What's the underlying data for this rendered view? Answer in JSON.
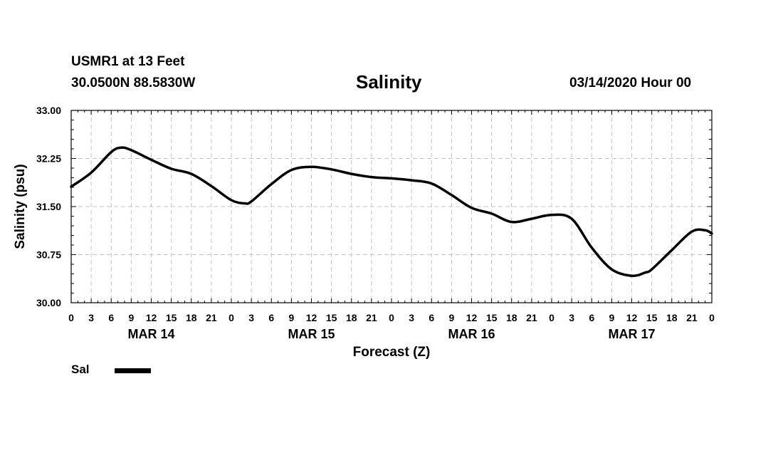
{
  "header": {
    "station": "USMR1 at 13 Feet",
    "coords": "30.0500N 88.5830W",
    "title": "Salinity",
    "timestamp": "03/14/2020 Hour 00"
  },
  "legend": {
    "label": "Sal",
    "color": "#000000"
  },
  "chart_data": {
    "type": "line",
    "title": "Salinity",
    "xlabel": "Forecast (Z)",
    "ylabel": "Salinity (psu)",
    "ylim": [
      30.0,
      33.0
    ],
    "yticks": [
      "30.00",
      "30.75",
      "31.50",
      "32.25",
      "33.00"
    ],
    "xlim_hours": [
      0,
      96
    ],
    "xtick_labels": [
      "0",
      "3",
      "6",
      "9",
      "12",
      "15",
      "18",
      "21",
      "0",
      "3",
      "6",
      "9",
      "12",
      "15",
      "18",
      "21",
      "0",
      "3",
      "6",
      "9",
      "12",
      "15",
      "18",
      "21",
      "0",
      "3",
      "6",
      "9",
      "12",
      "15",
      "18",
      "21",
      "0"
    ],
    "day_labels": [
      {
        "label": "MAR 14",
        "hour": 12
      },
      {
        "label": "MAR 15",
        "hour": 36
      },
      {
        "label": "MAR 16",
        "hour": 60
      },
      {
        "label": "MAR 17",
        "hour": 84
      }
    ],
    "grid": true,
    "series": [
      {
        "name": "Sal",
        "x_hours": [
          0,
          3,
          6,
          7.5,
          9,
          12,
          15,
          18,
          21,
          24,
          26,
          27,
          30,
          33,
          36,
          39,
          42,
          45,
          48,
          51,
          54,
          57,
          60,
          63,
          66,
          69,
          72,
          75,
          78,
          81,
          84,
          86,
          87,
          90,
          93,
          95,
          96
        ],
        "values": [
          31.81,
          32.03,
          32.35,
          32.42,
          32.38,
          32.23,
          32.09,
          32.01,
          31.82,
          31.6,
          31.55,
          31.58,
          31.85,
          32.07,
          32.12,
          32.08,
          32.01,
          31.96,
          31.94,
          31.91,
          31.86,
          31.68,
          31.48,
          31.39,
          31.26,
          31.31,
          31.37,
          31.31,
          30.86,
          30.52,
          30.42,
          30.47,
          30.52,
          30.82,
          31.11,
          31.13,
          31.08
        ]
      }
    ]
  }
}
